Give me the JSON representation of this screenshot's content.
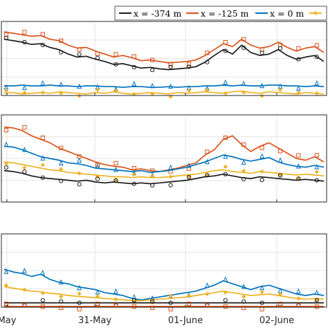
{
  "chart_data": {
    "type": "line",
    "x_tick_labels": [
      "May",
      "31-May",
      "01-June",
      "02-June"
    ],
    "legend": {
      "placement": "top-right",
      "entries": [
        {
          "label": "x = -374 m",
          "color": "#1a1a1a"
        },
        {
          "label": "x = -125 m",
          "color": "#d95319"
        },
        {
          "label": "x = 0 m",
          "color": "#0072bd"
        },
        {
          "label": "x = ",
          "color": "#edb120"
        }
      ]
    },
    "grid": true,
    "marker_styles": {
      "x = -374 m": "circle",
      "x = -125 m": "square",
      "x = 0 m": "triangle",
      "x = ": "diamond"
    },
    "panels": [
      {
        "name": "top",
        "ylim": [
          0,
          10
        ],
        "series": [
          {
            "name": "x = -125 m",
            "line": [
              8.6,
              8.4,
              8.2,
              8.0,
              8.1,
              7.6,
              7.4,
              6.8,
              6.4,
              6.5,
              6.0,
              5.6,
              5.2,
              5.4,
              5.1,
              4.7,
              4.8,
              4.6,
              4.4,
              4.5,
              4.6,
              4.8,
              5.4,
              6.2,
              7.0,
              6.6,
              7.6,
              6.8,
              6.4,
              6.6,
              7.2,
              6.5,
              6.0,
              6.4,
              6.6,
              5.8
            ]
          },
          {
            "name": "x = -374 m",
            "line": [
              7.6,
              7.4,
              7.2,
              6.9,
              7.0,
              6.5,
              6.2,
              5.6,
              5.2,
              5.3,
              4.9,
              4.6,
              4.2,
              4.3,
              4.0,
              3.7,
              3.8,
              3.6,
              3.5,
              3.6,
              3.7,
              3.9,
              4.5,
              5.4,
              6.2,
              5.6,
              6.8,
              5.8,
              5.4,
              5.6,
              6.2,
              5.4,
              4.9,
              5.2,
              5.4,
              4.6
            ]
          },
          {
            "name": "x = 0 m",
            "line": [
              1.3,
              1.3,
              1.4,
              1.3,
              1.3,
              1.4,
              1.3,
              1.3,
              1.2,
              1.3,
              1.3,
              1.2,
              1.2,
              1.1,
              1.2,
              1.2,
              1.1,
              1.1,
              1.2,
              1.1,
              1.2,
              1.2,
              1.3,
              1.3,
              1.4,
              1.3,
              1.4,
              1.3,
              1.3,
              1.4,
              1.4,
              1.3,
              1.3,
              1.2,
              1.3,
              1.2
            ]
          },
          {
            "name": "x = ",
            "line": [
              0.3,
              0.4,
              0.2,
              0.3,
              0.4,
              0.3,
              0.5,
              0.4,
              0.3,
              0.2,
              0.4,
              0.3,
              0.5,
              0.3,
              0.2,
              0.3,
              0.4,
              0.3,
              0.2,
              0.4,
              0.3,
              0.4,
              0.5,
              0.4,
              0.3,
              0.5,
              0.6,
              0.4,
              0.3,
              0.5,
              0.4,
              0.3,
              0.2,
              0.4,
              0.3,
              0.2
            ]
          }
        ]
      },
      {
        "name": "middle",
        "ylim": [
          0,
          10
        ],
        "series": [
          {
            "name": "x = -125 m",
            "line": [
              8.6,
              8.5,
              8.2,
              7.6,
              7.2,
              6.8,
              6.2,
              5.8,
              5.4,
              5.0,
              4.6,
              4.3,
              4.1,
              4.0,
              3.7,
              3.8,
              3.6,
              3.5,
              3.7,
              3.9,
              4.2,
              4.5,
              5.4,
              6.0,
              7.2,
              7.6,
              6.6,
              5.8,
              6.4,
              6.8,
              6.2,
              5.6,
              5.0,
              4.8,
              5.2,
              4.6
            ]
          },
          {
            "name": "x = 0 m",
            "line": [
              6.4,
              6.3,
              6.0,
              5.6,
              5.2,
              5.0,
              4.8,
              4.5,
              4.4,
              4.2,
              3.9,
              3.8,
              3.7,
              3.6,
              3.5,
              3.6,
              3.4,
              3.5,
              3.6,
              3.8,
              4.0,
              4.3,
              4.6,
              5.0,
              5.4,
              5.2,
              4.9,
              4.7,
              4.9,
              5.1,
              4.6,
              4.3,
              4.1,
              4.0,
              4.2,
              4.0
            ]
          },
          {
            "name": "x = ",
            "line": [
              4.6,
              4.5,
              4.3,
              4.1,
              3.9,
              3.7,
              3.6,
              3.4,
              3.3,
              3.2,
              3.1,
              3.0,
              2.9,
              2.9,
              2.8,
              2.9,
              2.8,
              2.8,
              2.9,
              3.0,
              3.1,
              3.2,
              3.4,
              3.6,
              3.7,
              3.5,
              3.4,
              3.3,
              3.5,
              3.4,
              3.3,
              3.2,
              3.1,
              3.2,
              3.1,
              3.0
            ]
          },
          {
            "name": "x = -374 m",
            "line": [
              3.6,
              3.5,
              3.3,
              3.0,
              2.8,
              2.7,
              2.6,
              2.5,
              2.4,
              2.5,
              2.3,
              2.2,
              2.3,
              2.2,
              2.1,
              2.2,
              2.1,
              2.2,
              2.3,
              2.4,
              2.5,
              2.7,
              2.9,
              3.0,
              3.2,
              3.0,
              2.8,
              2.7,
              2.9,
              2.8,
              2.7,
              2.6,
              2.5,
              2.6,
              2.5,
              2.4
            ]
          }
        ]
      },
      {
        "name": "bottom",
        "ylim": [
          0,
          10
        ],
        "series": [
          {
            "name": "x = 0 m",
            "line": [
              5.2,
              4.8,
              4.6,
              4.2,
              4.5,
              3.8,
              3.4,
              3.2,
              2.8,
              2.6,
              2.4,
              2.0,
              1.8,
              1.6,
              1.2,
              1.0,
              1.2,
              1.4,
              1.6,
              1.8,
              2.0,
              2.2,
              2.6,
              3.0,
              3.6,
              3.2,
              2.8,
              2.4,
              2.8,
              3.0,
              2.6,
              2.2,
              1.8,
              1.6,
              1.8,
              1.6
            ]
          },
          {
            "name": "x = ",
            "line": [
              2.8,
              2.6,
              2.4,
              2.2,
              2.1,
              1.9,
              1.8,
              1.6,
              1.5,
              1.4,
              1.3,
              1.2,
              1.1,
              1.0,
              0.9,
              0.9,
              1.0,
              1.1,
              1.2,
              1.3,
              1.4,
              1.6,
              1.8,
              2.0,
              2.2,
              2.0,
              1.8,
              1.6,
              1.7,
              1.8,
              1.6,
              1.4,
              1.2,
              1.1,
              1.2,
              1.1
            ]
          },
          {
            "name": "x = -374 m",
            "line": [
              0.6,
              0.6,
              0.6,
              0.6,
              0.6,
              0.6,
              0.6,
              0.6,
              0.6,
              0.6,
              0.6,
              0.6,
              0.6,
              0.6,
              0.6,
              0.6,
              0.6,
              0.6,
              0.6,
              0.6,
              0.6,
              0.6,
              0.6,
              0.6,
              0.6,
              0.6,
              0.6,
              0.6,
              0.6,
              0.6,
              0.6,
              0.6,
              0.6,
              0.6,
              0.6,
              0.6
            ]
          },
          {
            "name": "x = -125 m",
            "line": [
              0.1,
              0.1,
              0.1,
              0.1,
              0.1,
              0.1,
              0.1,
              0.1,
              0.1,
              0.1,
              0.1,
              0.1,
              0.1,
              0.1,
              0.1,
              0.1,
              0.1,
              0.1,
              0.1,
              0.1,
              0.1,
              0.1,
              0.1,
              0.1,
              0.1,
              0.1,
              0.1,
              0.1,
              0.1,
              0.1,
              0.1,
              0.1,
              0.1,
              0.1,
              0.1,
              0.1
            ]
          }
        ]
      }
    ]
  }
}
